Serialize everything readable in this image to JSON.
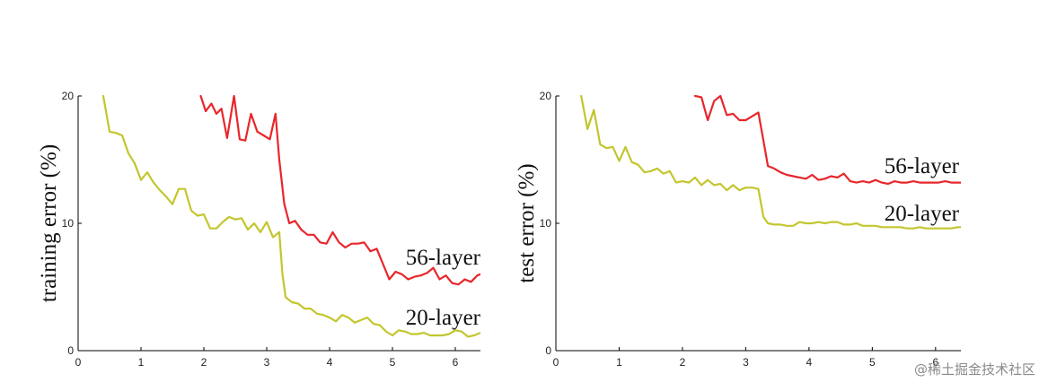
{
  "colors": {
    "red": "#e8262b",
    "olive": "#c3c62e"
  },
  "watermark": "@稀土掘金技术社区",
  "chart_data": [
    {
      "type": "line",
      "ylabel": "training error (%)",
      "xlim": [
        0,
        6.4
      ],
      "ylim": [
        0,
        20
      ],
      "xticks": [
        "0",
        "1",
        "2",
        "3",
        "4",
        "5",
        "6"
      ],
      "yticks": [
        "0",
        "10",
        "20"
      ],
      "series": [
        {
          "name": "56-layer",
          "color": "#e8262b",
          "x": [
            1.95,
            2.03,
            2.12,
            2.2,
            2.28,
            2.37,
            2.48,
            2.57,
            2.66,
            2.75,
            2.85,
            2.95,
            3.05,
            3.14,
            3.2,
            3.28,
            3.36,
            3.45,
            3.55,
            3.65,
            3.75,
            3.85,
            3.95,
            4.05,
            4.15,
            4.25,
            4.35,
            4.45,
            4.55,
            4.65,
            4.75,
            4.85,
            4.95,
            5.05,
            5.15,
            5.25,
            5.35,
            5.45,
            5.55,
            5.65,
            5.75,
            5.85,
            5.95,
            6.05,
            6.15,
            6.25,
            6.35,
            6.4
          ],
          "y": [
            20,
            18.8,
            19.4,
            18.6,
            19,
            16.7,
            20,
            16.6,
            16.5,
            18.6,
            17.2,
            16.9,
            16.6,
            18.6,
            15.0,
            11.5,
            10.0,
            10.2,
            9.5,
            9.1,
            9.1,
            8.5,
            8.4,
            9.3,
            8.5,
            8.1,
            8.4,
            8.4,
            8.5,
            7.8,
            8.0,
            6.8,
            5.6,
            6.2,
            6.0,
            5.6,
            5.8,
            5.9,
            6.1,
            6.5,
            5.6,
            5.9,
            5.3,
            5.2,
            5.6,
            5.4,
            5.9,
            6.0
          ]
        },
        {
          "name": "20-layer",
          "color": "#c3c62e",
          "x": [
            0.4,
            0.5,
            0.6,
            0.7,
            0.8,
            0.9,
            1.0,
            1.1,
            1.2,
            1.3,
            1.4,
            1.5,
            1.6,
            1.7,
            1.8,
            1.9,
            2.0,
            2.1,
            2.2,
            2.3,
            2.4,
            2.5,
            2.6,
            2.7,
            2.8,
            2.9,
            3.0,
            3.1,
            3.2,
            3.25,
            3.3,
            3.4,
            3.5,
            3.6,
            3.7,
            3.8,
            3.9,
            4.0,
            4.1,
            4.2,
            4.3,
            4.4,
            4.5,
            4.6,
            4.7,
            4.8,
            4.9,
            5.0,
            5.1,
            5.2,
            5.3,
            5.4,
            5.5,
            5.6,
            5.7,
            5.8,
            5.9,
            6.0,
            6.1,
            6.2,
            6.3,
            6.4
          ],
          "y": [
            20,
            17.2,
            17.1,
            16.9,
            15.5,
            14.7,
            13.4,
            14.0,
            13.2,
            12.6,
            12.1,
            11.5,
            12.7,
            12.7,
            11.0,
            10.6,
            10.7,
            9.6,
            9.6,
            10.1,
            10.5,
            10.3,
            10.4,
            9.5,
            10.0,
            9.3,
            10.1,
            8.9,
            9.3,
            6.0,
            4.2,
            3.8,
            3.7,
            3.3,
            3.3,
            2.9,
            2.8,
            2.6,
            2.3,
            2.8,
            2.6,
            2.2,
            2.4,
            2.6,
            2.1,
            2.0,
            1.5,
            1.2,
            1.6,
            1.5,
            1.3,
            1.3,
            1.4,
            1.2,
            1.2,
            1.2,
            1.3,
            1.6,
            1.5,
            1.1,
            1.2,
            1.4
          ]
        }
      ]
    },
    {
      "type": "line",
      "ylabel": "test error (%)",
      "xlim": [
        0,
        6.4
      ],
      "ylim": [
        0,
        20
      ],
      "xticks": [
        "0",
        "1",
        "2",
        "3",
        "4",
        "5",
        "6"
      ],
      "yticks": [
        "0",
        "10",
        "20"
      ],
      "series": [
        {
          "name": "56-layer",
          "color": "#e8262b",
          "x": [
            2.2,
            2.3,
            2.4,
            2.5,
            2.6,
            2.7,
            2.8,
            2.9,
            3.0,
            3.1,
            3.2,
            3.28,
            3.35,
            3.45,
            3.55,
            3.65,
            3.75,
            3.85,
            3.95,
            4.05,
            4.15,
            4.25,
            4.35,
            4.45,
            4.55,
            4.65,
            4.75,
            4.85,
            4.95,
            5.05,
            5.15,
            5.25,
            5.35,
            5.45,
            5.55,
            5.65,
            5.75,
            5.85,
            5.95,
            6.05,
            6.15,
            6.25,
            6.35,
            6.4
          ],
          "y": [
            20,
            19.9,
            18.1,
            19.6,
            20,
            18.5,
            18.6,
            18.1,
            18.1,
            18.4,
            18.7,
            16.5,
            14.5,
            14.3,
            14.0,
            13.8,
            13.7,
            13.6,
            13.5,
            13.8,
            13.4,
            13.5,
            13.7,
            13.6,
            13.9,
            13.3,
            13.2,
            13.3,
            13.2,
            13.4,
            13.2,
            13.1,
            13.3,
            13.2,
            13.2,
            13.3,
            13.2,
            13.2,
            13.2,
            13.2,
            13.3,
            13.2,
            13.2,
            13.2
          ]
        },
        {
          "name": "20-layer",
          "color": "#c3c62e",
          "x": [
            0.4,
            0.5,
            0.6,
            0.7,
            0.8,
            0.9,
            1.0,
            1.1,
            1.2,
            1.3,
            1.4,
            1.5,
            1.6,
            1.7,
            1.8,
            1.9,
            2.0,
            2.1,
            2.2,
            2.3,
            2.4,
            2.5,
            2.6,
            2.7,
            2.8,
            2.9,
            3.0,
            3.1,
            3.2,
            3.28,
            3.35,
            3.45,
            3.55,
            3.65,
            3.75,
            3.85,
            3.95,
            4.05,
            4.15,
            4.25,
            4.35,
            4.45,
            4.55,
            4.65,
            4.75,
            4.85,
            4.95,
            5.05,
            5.15,
            5.25,
            5.35,
            5.45,
            5.55,
            5.65,
            5.75,
            5.85,
            5.95,
            6.05,
            6.15,
            6.25,
            6.35,
            6.4
          ],
          "y": [
            20,
            17.4,
            18.9,
            16.2,
            15.9,
            16.0,
            14.9,
            16.0,
            14.8,
            14.6,
            14.0,
            14.1,
            14.3,
            13.9,
            14.1,
            13.2,
            13.3,
            13.2,
            13.6,
            13.0,
            13.4,
            13.0,
            13.1,
            12.6,
            13.0,
            12.6,
            12.8,
            12.8,
            12.7,
            10.5,
            10.0,
            9.9,
            9.9,
            9.8,
            9.8,
            10.1,
            10.0,
            10.0,
            10.1,
            10.0,
            10.1,
            10.1,
            9.9,
            9.9,
            10.0,
            9.8,
            9.8,
            9.8,
            9.7,
            9.7,
            9.7,
            9.7,
            9.6,
            9.6,
            9.7,
            9.6,
            9.6,
            9.6,
            9.6,
            9.6,
            9.7,
            9.7
          ]
        }
      ]
    }
  ]
}
